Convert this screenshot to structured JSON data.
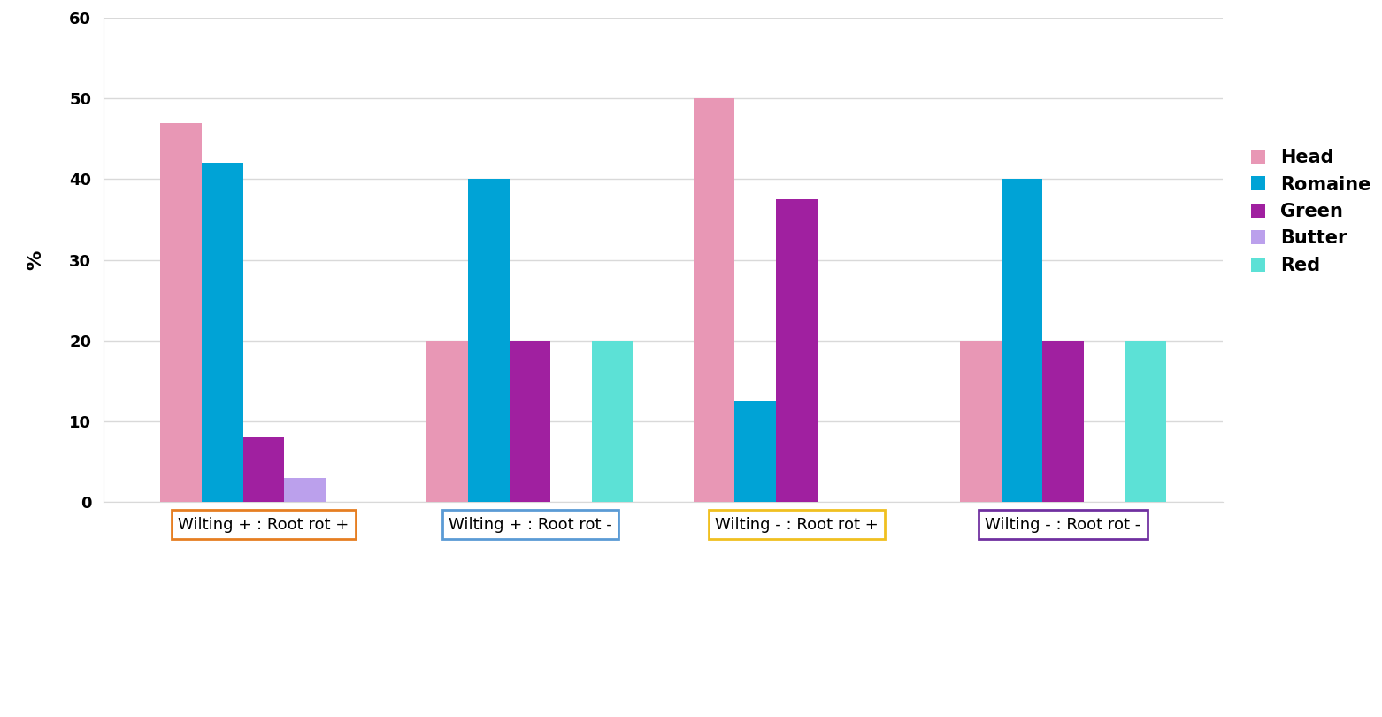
{
  "chart_data": {
    "type": "bar",
    "categories": [
      "Wilting + : Root rot +",
      "Wilting + : Root rot -",
      "Wilting - : Root rot +",
      "Wilting - : Root rot -"
    ],
    "series": [
      {
        "name": "Head",
        "color": "#e897b5",
        "values": [
          47,
          20,
          50,
          20
        ]
      },
      {
        "name": "Romaine",
        "color": "#00a3d6",
        "values": [
          42,
          40,
          12.5,
          40
        ]
      },
      {
        "name": "Green",
        "color": "#a020a0",
        "values": [
          8,
          20,
          37.5,
          20
        ]
      },
      {
        "name": "Butter",
        "color": "#bba0ec",
        "values": [
          3,
          0,
          0,
          0
        ]
      },
      {
        "name": "Red",
        "color": "#5ce1d6",
        "values": [
          0,
          20,
          0,
          20
        ]
      }
    ],
    "y_label": "%",
    "ylim": [
      0,
      60
    ],
    "yticks": [
      0,
      10,
      20,
      30,
      40,
      50,
      60
    ],
    "grid": true,
    "legend": "right"
  }
}
